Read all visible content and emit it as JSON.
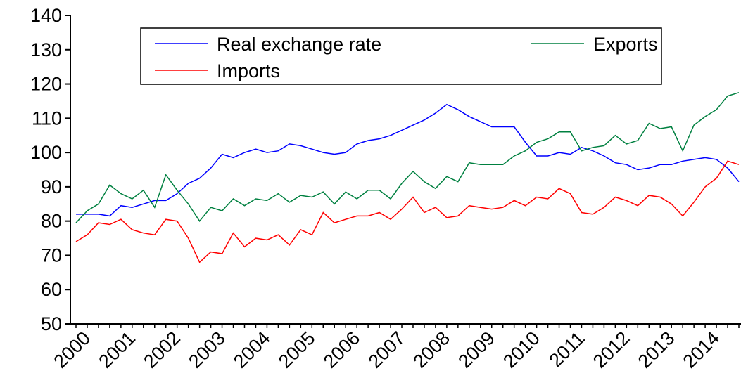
{
  "chart_data": {
    "type": "line",
    "categories": [
      "2000",
      null,
      null,
      null,
      "2001",
      null,
      null,
      null,
      "2002",
      null,
      null,
      null,
      "2003",
      null,
      null,
      null,
      "2004",
      null,
      null,
      null,
      "2005",
      null,
      null,
      null,
      "2006",
      null,
      null,
      null,
      "2007",
      null,
      null,
      null,
      "2008",
      null,
      null,
      null,
      "2009",
      null,
      null,
      null,
      "2010",
      null,
      null,
      null,
      "2011",
      null,
      null,
      null,
      "2012",
      null,
      null,
      null,
      "2013",
      null,
      null,
      null,
      "2014",
      null,
      null,
      null
    ],
    "series": [
      {
        "name": "Real exchange rate",
        "color": "#0000ff",
        "values": [
          82,
          82,
          82,
          81.5,
          84.5,
          84,
          85,
          86,
          86,
          88,
          91,
          92.5,
          95.5,
          99.5,
          98.5,
          100,
          101,
          100,
          100.5,
          102.5,
          102,
          101,
          100,
          99.5,
          100,
          102.5,
          103.5,
          104,
          105,
          106.5,
          108,
          109.5,
          111.5,
          114,
          112.5,
          110.5,
          109,
          107.5,
          107.5,
          107.5,
          103,
          99,
          99,
          100,
          99.5,
          101.5,
          100.5,
          99,
          97,
          96.5,
          95,
          95.5,
          96.5,
          96.5,
          97.5,
          98,
          98.5,
          98,
          95.5,
          91.5
        ]
      },
      {
        "name": "Exports",
        "color": "#008040",
        "values": [
          79.5,
          83,
          85,
          90.5,
          88,
          86.5,
          89,
          84,
          93.5,
          89,
          85,
          80,
          84,
          83,
          86.5,
          84.5,
          86.5,
          86,
          88,
          85.5,
          87.5,
          87,
          88.5,
          85,
          88.5,
          86.5,
          89,
          89,
          86.5,
          91,
          94.5,
          91.5,
          89.5,
          93,
          91.5,
          97,
          96.5,
          96.5,
          96.5,
          99,
          100.5,
          103,
          104,
          106,
          106,
          100.5,
          101.5,
          102,
          105,
          102.5,
          103.5,
          108.5,
          107,
          107.5,
          100.5,
          108,
          110.5,
          112.5,
          116.5,
          117.5
        ]
      },
      {
        "name": "Imports",
        "color": "#ff0000",
        "values": [
          74,
          76,
          79.5,
          79,
          80.5,
          77.5,
          76.5,
          76,
          80.5,
          80,
          75,
          68,
          71,
          70.5,
          76.5,
          72.5,
          75,
          74.5,
          76,
          73,
          77.5,
          76,
          82.5,
          79.5,
          80.5,
          81.5,
          81.5,
          82.5,
          80.5,
          83.5,
          87,
          82.5,
          84,
          81,
          81.5,
          84.5,
          84,
          83.5,
          84,
          86,
          84.5,
          87,
          86.5,
          89.5,
          88,
          82.5,
          82,
          84,
          87,
          86,
          84.5,
          87.5,
          87,
          85,
          81.5,
          85.5,
          90,
          92.5,
          97.5,
          96.5
        ]
      }
    ],
    "ylim": [
      50,
      140
    ],
    "yticks": [
      50,
      60,
      70,
      80,
      90,
      100,
      110,
      120,
      130,
      140
    ],
    "grid": false,
    "legend": "upper center"
  }
}
